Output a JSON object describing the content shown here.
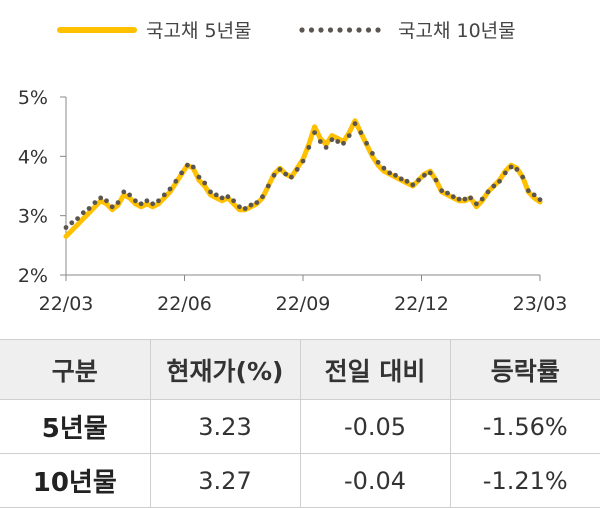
{
  "chart_data": {
    "type": "line",
    "x_tick_labels": [
      "22/03",
      "22/06",
      "22/09",
      "22/12",
      "23/03"
    ],
    "y_tick_labels": [
      "5%",
      "4%",
      "3%",
      "2%"
    ],
    "y_ticks": [
      5,
      4,
      3,
      2
    ],
    "ylim": [
      2,
      5
    ],
    "grid": false,
    "legend_position": "top",
    "series": [
      {
        "name": "국고채 5년물",
        "style": "solid",
        "color": "#ffc000",
        "values": [
          2.65,
          2.75,
          2.85,
          2.95,
          3.05,
          3.15,
          3.25,
          3.2,
          3.1,
          3.18,
          3.35,
          3.3,
          3.2,
          3.15,
          3.2,
          3.15,
          3.2,
          3.3,
          3.4,
          3.55,
          3.7,
          3.85,
          3.8,
          3.6,
          3.5,
          3.35,
          3.3,
          3.25,
          3.3,
          3.2,
          3.1,
          3.1,
          3.15,
          3.2,
          3.3,
          3.5,
          3.7,
          3.8,
          3.7,
          3.65,
          3.8,
          3.95,
          4.2,
          4.5,
          4.3,
          4.2,
          4.35,
          4.3,
          4.25,
          4.4,
          4.6,
          4.4,
          4.2,
          4.0,
          3.85,
          3.75,
          3.7,
          3.65,
          3.6,
          3.55,
          3.5,
          3.6,
          3.7,
          3.75,
          3.6,
          3.4,
          3.35,
          3.3,
          3.25,
          3.25,
          3.3,
          3.15,
          3.25,
          3.4,
          3.5,
          3.6,
          3.75,
          3.85,
          3.8,
          3.65,
          3.4,
          3.3,
          3.23
        ]
      },
      {
        "name": "국고채 10년물",
        "style": "dotted",
        "color": "#5a5550",
        "values": [
          2.8,
          2.88,
          2.95,
          3.05,
          3.12,
          3.22,
          3.3,
          3.25,
          3.15,
          3.22,
          3.4,
          3.35,
          3.25,
          3.2,
          3.25,
          3.2,
          3.25,
          3.35,
          3.45,
          3.58,
          3.72,
          3.85,
          3.82,
          3.65,
          3.55,
          3.4,
          3.35,
          3.3,
          3.32,
          3.25,
          3.15,
          3.12,
          3.18,
          3.22,
          3.32,
          3.5,
          3.68,
          3.78,
          3.7,
          3.65,
          3.78,
          3.92,
          4.15,
          4.4,
          4.25,
          4.15,
          4.28,
          4.25,
          4.22,
          4.35,
          4.55,
          4.4,
          4.22,
          4.05,
          3.9,
          3.8,
          3.72,
          3.68,
          3.62,
          3.58,
          3.52,
          3.6,
          3.68,
          3.72,
          3.6,
          3.42,
          3.38,
          3.32,
          3.28,
          3.28,
          3.3,
          3.2,
          3.28,
          3.4,
          3.5,
          3.58,
          3.72,
          3.82,
          3.78,
          3.65,
          3.42,
          3.35,
          3.27
        ]
      }
    ]
  },
  "table": {
    "headers": [
      "구분",
      "현재가(%)",
      "전일 대비",
      "등락률"
    ],
    "rows": [
      [
        "5년물",
        "3.23",
        "-0.05",
        "-1.56%"
      ],
      [
        "10년물",
        "3.27",
        "-0.04",
        "-1.21%"
      ]
    ]
  }
}
